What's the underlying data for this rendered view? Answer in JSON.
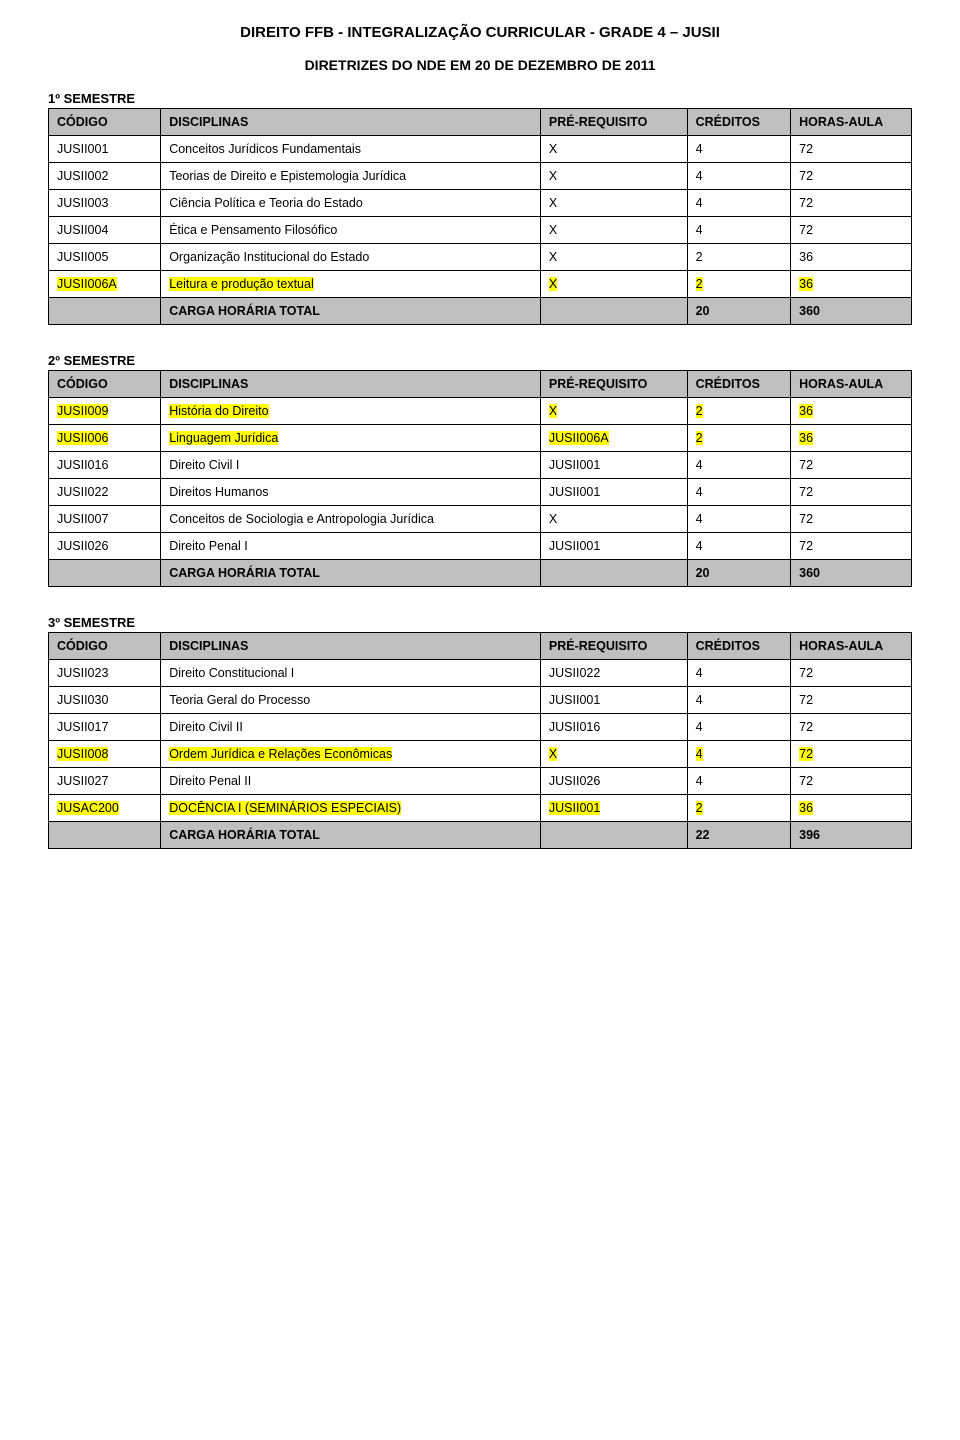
{
  "title": "DIREITO FFB - INTEGRALIZAÇÃO CURRICULAR - GRADE 4 – JUSII",
  "subtitle": "DIRETRIZES DO NDE EM 20 DE DEZEMBRO DE 2011",
  "header": {
    "code": "CÓDIGO",
    "disc": "DISCIPLINAS",
    "prer": "PRÉ-REQUISITO",
    "cred": "CRÉDITOS",
    "hours": "HORAS-AULA"
  },
  "footer_label": "CARGA HORÁRIA TOTAL",
  "semesters": [
    {
      "label": "1º SEMESTRE",
      "rows": [
        {
          "code": "JUSII001",
          "disc": "Conceitos Jurídicos Fundamentais",
          "prer": "X",
          "cred": "4",
          "hours": "72",
          "hl": false
        },
        {
          "code": "JUSII002",
          "disc": "Teorias de Direito e Epistemologia Jurídica",
          "prer": "X",
          "cred": "4",
          "hours": "72",
          "hl": false
        },
        {
          "code": "JUSII003",
          "disc": "Ciência Política e Teoria do Estado",
          "prer": "X",
          "cred": "4",
          "hours": "72",
          "hl": false
        },
        {
          "code": "JUSII004",
          "disc": "Ética e Pensamento Filosófico",
          "prer": "X",
          "cred": "4",
          "hours": "72",
          "hl": false
        },
        {
          "code": "JUSII005",
          "disc": "Organização Institucional do Estado",
          "prer": "X",
          "cred": "2",
          "hours": "36",
          "hl": false
        },
        {
          "code": "JUSII006A",
          "disc": "Leitura e produção textual",
          "prer": "X",
          "cred": "2",
          "hours": "36",
          "hl": true
        }
      ],
      "total_cred": "20",
      "total_hours": "360"
    },
    {
      "label": "2º SEMESTRE",
      "rows": [
        {
          "code": "JUSII009",
          "disc": "História do Direito",
          "prer": "X",
          "cred": "2",
          "hours": "36",
          "hl": true
        },
        {
          "code": "JUSII006",
          "disc": "Linguagem Jurídica",
          "prer": "JUSII006A",
          "cred": "2",
          "hours": "36",
          "hl": true
        },
        {
          "code": "JUSII016",
          "disc": "Direito Civil I",
          "prer": "JUSII001",
          "cred": "4",
          "hours": "72",
          "hl": false
        },
        {
          "code": "JUSII022",
          "disc": "Direitos Humanos",
          "prer": "JUSII001",
          "cred": "4",
          "hours": "72",
          "hl": false
        },
        {
          "code": "JUSII007",
          "disc": "Conceitos de Sociologia e Antropologia Jurídica",
          "prer": "X",
          "cred": "4",
          "hours": "72",
          "hl": false
        },
        {
          "code": "JUSII026",
          "disc": "Direito Penal I",
          "prer": "JUSII001",
          "cred": "4",
          "hours": "72",
          "hl": false
        }
      ],
      "total_cred": "20",
      "total_hours": "360"
    },
    {
      "label": "3º SEMESTRE",
      "rows": [
        {
          "code": "JUSII023",
          "disc": "Direito Constitucional I",
          "prer": "JUSII022",
          "cred": "4",
          "hours": "72",
          "hl": false
        },
        {
          "code": "JUSII030",
          "disc": "Teoria Geral do Processo",
          "prer": "JUSII001",
          "cred": "4",
          "hours": "72",
          "hl": false
        },
        {
          "code": "JUSII017",
          "disc": "Direito Civil II",
          "prer": "JUSII016",
          "cred": "4",
          "hours": "72",
          "hl": false
        },
        {
          "code": "JUSII008",
          "disc": "Ordem Jurídica e Relações Econômicas",
          "prer": "X",
          "cred": "4",
          "hours": "72",
          "hl": true
        },
        {
          "code": "JUSII027",
          "disc": "Direito Penal II",
          "prer": "JUSII026",
          "cred": "4",
          "hours": "72",
          "hl": false
        },
        {
          "code": "JUSAC200",
          "disc": "DOCÊNCIA I (SEMINÁRIOS ESPECIAIS)",
          "prer": "JUSII001",
          "cred": "2",
          "hours": "36",
          "hl": true
        }
      ],
      "total_cred": "22",
      "total_hours": "396"
    }
  ]
}
